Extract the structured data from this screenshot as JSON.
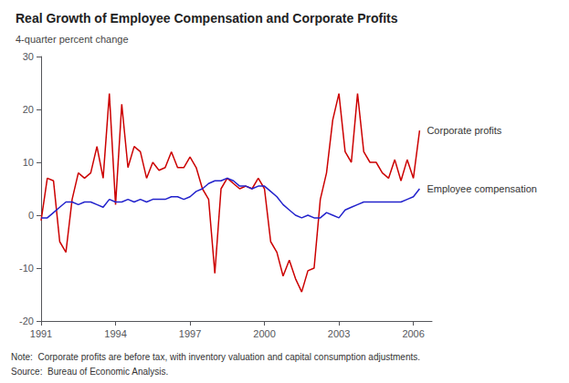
{
  "chart_data": {
    "type": "line",
    "title": "Real Growth of Employee Compensation and Corporate Profits",
    "subtitle": "4-quarter percent change",
    "note": "Note:  Corporate profits are before tax, with inventory valuation and capital consumption adjustments.",
    "source": "Source:  Bureau of Economic Analysis.",
    "xlim": [
      1991,
      2006.75
    ],
    "ylim": [
      -20,
      30
    ],
    "xticks": [
      1991,
      1994,
      1997,
      2000,
      2003,
      2006
    ],
    "yticks": [
      -20,
      -10,
      0,
      10,
      20,
      30
    ],
    "grid": false,
    "x": [
      1991.0,
      1991.25,
      1991.5,
      1991.75,
      1992.0,
      1992.25,
      1992.5,
      1992.75,
      1993.0,
      1993.25,
      1993.5,
      1993.75,
      1994.0,
      1994.25,
      1994.5,
      1994.75,
      1995.0,
      1995.25,
      1995.5,
      1995.75,
      1996.0,
      1996.25,
      1996.5,
      1996.75,
      1997.0,
      1997.25,
      1997.5,
      1997.75,
      1998.0,
      1998.25,
      1998.5,
      1998.75,
      1999.0,
      1999.25,
      1999.5,
      1999.75,
      2000.0,
      2000.25,
      2000.5,
      2000.75,
      2001.0,
      2001.25,
      2001.5,
      2001.75,
      2002.0,
      2002.25,
      2002.5,
      2002.75,
      2003.0,
      2003.25,
      2003.5,
      2003.75,
      2004.0,
      2004.25,
      2004.5,
      2004.75,
      2005.0,
      2005.25,
      2005.5,
      2005.75,
      2006.0,
      2006.25
    ],
    "series": [
      {
        "name": "Corporate profits",
        "color": "#cc0000",
        "values": [
          -1.0,
          7.0,
          6.5,
          -5.0,
          -7.0,
          3.0,
          8.0,
          7.0,
          8.0,
          13.0,
          7.0,
          23.0,
          2.0,
          21.0,
          9.0,
          13.0,
          12.0,
          7.0,
          10.0,
          8.5,
          9.0,
          12.0,
          9.0,
          9.0,
          11.0,
          9.0,
          5.0,
          3.0,
          -11.0,
          5.0,
          7.0,
          6.0,
          5.0,
          5.5,
          5.0,
          7.0,
          5.0,
          -5.0,
          -7.0,
          -11.5,
          -8.5,
          -12.0,
          -14.5,
          -10.5,
          -10.0,
          3.0,
          8.0,
          18.0,
          23.0,
          12.0,
          10.0,
          23.0,
          12.0,
          10.0,
          10.0,
          8.0,
          7.0,
          10.5,
          6.5,
          10.5,
          7.0,
          16.0
        ]
      },
      {
        "name": "Employee compensation",
        "color": "#2222cc",
        "values": [
          -0.5,
          -0.5,
          0.5,
          1.5,
          2.5,
          2.5,
          2.0,
          2.5,
          2.5,
          2.0,
          1.5,
          3.0,
          2.5,
          2.5,
          3.0,
          2.5,
          3.0,
          2.5,
          3.0,
          3.0,
          3.0,
          3.5,
          3.5,
          3.0,
          3.5,
          4.5,
          5.0,
          6.0,
          6.5,
          6.5,
          7.0,
          6.5,
          5.5,
          5.5,
          5.0,
          5.5,
          5.5,
          4.5,
          3.5,
          2.0,
          1.0,
          0.0,
          -0.5,
          0.0,
          -0.5,
          -0.5,
          0.5,
          0.0,
          -0.5,
          1.0,
          1.5,
          2.0,
          2.5,
          2.5,
          2.5,
          2.5,
          2.5,
          2.5,
          2.5,
          3.0,
          3.5,
          5.0
        ]
      }
    ]
  }
}
